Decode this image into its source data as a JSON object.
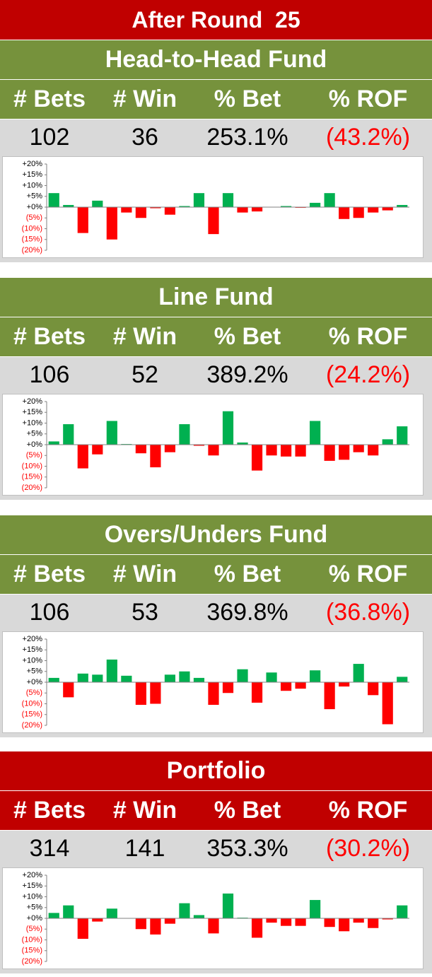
{
  "title": "After Round  25",
  "colors": {
    "positive": "#00b050",
    "negative": "#ff0000"
  },
  "sections": [
    {
      "title": "Head-to-Head Fund",
      "headers": [
        "# Bets",
        "# Win",
        "% Bet",
        "% ROF"
      ],
      "stats": [
        "102",
        "36",
        "253.1%",
        "(43.2%)"
      ],
      "chart": {
        "type": "bar",
        "ylim": [
          -20,
          20
        ],
        "yticks": [
          {
            "value": 20,
            "label": "+20%"
          },
          {
            "value": 15,
            "label": "+15%"
          },
          {
            "value": 10,
            "label": "+10%"
          },
          {
            "value": 5,
            "label": "+5%"
          },
          {
            "value": 0,
            "label": "+0%"
          },
          {
            "value": -5,
            "label": "(5%)"
          },
          {
            "value": -10,
            "label": "(10%)"
          },
          {
            "value": -15,
            "label": "(15%)"
          },
          {
            "value": -20,
            "label": "(20%)"
          }
        ],
        "values": [
          6.5,
          1,
          -12,
          3,
          -15,
          -2.5,
          -5,
          -0.5,
          -3.5,
          0.5,
          6.5,
          -12.5,
          6.5,
          -2.5,
          -2,
          0,
          0.5,
          -0.3,
          2,
          6.5,
          -5.5,
          -5,
          -2.5,
          -1.5,
          1
        ]
      }
    },
    {
      "title": "Line Fund",
      "headers": [
        "# Bets",
        "# Win",
        "% Bet",
        "% ROF"
      ],
      "stats": [
        "106",
        "52",
        "389.2%",
        "(24.2%)"
      ],
      "chart": {
        "type": "bar",
        "ylim": [
          -20,
          20
        ],
        "yticks": [
          {
            "value": 20,
            "label": "+20%"
          },
          {
            "value": 15,
            "label": "+15%"
          },
          {
            "value": 10,
            "label": "+10%"
          },
          {
            "value": 5,
            "label": "+5%"
          },
          {
            "value": 0,
            "label": "+0%"
          },
          {
            "value": -5,
            "label": "(5%)"
          },
          {
            "value": -10,
            "label": "(10%)"
          },
          {
            "value": -15,
            "label": "(15%)"
          },
          {
            "value": -20,
            "label": "(20%)"
          }
        ],
        "values": [
          1.5,
          9.5,
          -11,
          -4.5,
          11,
          0.3,
          -4,
          -10.5,
          -3.5,
          9.5,
          -0.5,
          -5,
          15.5,
          1,
          -12,
          -5,
          -5.5,
          -5.5,
          11,
          -7.5,
          -7,
          -3.5,
          -5,
          2.5,
          8.5
        ]
      }
    },
    {
      "title": "Overs/Unders Fund",
      "headers": [
        "# Bets",
        "# Win",
        "% Bet",
        "% ROF"
      ],
      "stats": [
        "106",
        "53",
        "369.8%",
        "(36.8%)"
      ],
      "chart": {
        "type": "bar",
        "ylim": [
          -20,
          20
        ],
        "yticks": [
          {
            "value": 20,
            "label": "+20%"
          },
          {
            "value": 15,
            "label": "+15%"
          },
          {
            "value": 10,
            "label": "+10%"
          },
          {
            "value": 5,
            "label": "+5%"
          },
          {
            "value": 0,
            "label": "+0%"
          },
          {
            "value": -5,
            "label": "(5%)"
          },
          {
            "value": -10,
            "label": "(10%)"
          },
          {
            "value": -15,
            "label": "(15%)"
          },
          {
            "value": -20,
            "label": "(20%)"
          }
        ],
        "values": [
          2,
          -7,
          4,
          3.5,
          10.5,
          3,
          -10.5,
          -10,
          3.5,
          5,
          2,
          -10.5,
          -5,
          6,
          -9.5,
          4.5,
          -4,
          -3,
          5.5,
          -12.5,
          -2,
          8.5,
          -6,
          -19.5,
          2.5
        ]
      }
    },
    {
      "title": "Portfolio",
      "headers": [
        "# Bets",
        "# Win",
        "% Bet",
        "% ROF"
      ],
      "stats": [
        "314",
        "141",
        "353.3%",
        "(30.2%)"
      ],
      "chart": {
        "type": "bar",
        "ylim": [
          -20,
          20
        ],
        "yticks": [
          {
            "value": 20,
            "label": "+20%"
          },
          {
            "value": 15,
            "label": "+15%"
          },
          {
            "value": 10,
            "label": "+10%"
          },
          {
            "value": 5,
            "label": "+5%"
          },
          {
            "value": 0,
            "label": "+0%"
          },
          {
            "value": -5,
            "label": "(5%)"
          },
          {
            "value": -10,
            "label": "(10%)"
          },
          {
            "value": -15,
            "label": "(15%)"
          },
          {
            "value": -20,
            "label": "(20%)"
          }
        ],
        "values": [
          2.5,
          6,
          -9.5,
          -1.5,
          4.5,
          0,
          -5,
          -7.5,
          -2.5,
          7,
          1.5,
          -7,
          11.5,
          0.3,
          -9,
          -2,
          -3.5,
          -3.5,
          8.5,
          -4,
          -6,
          -2,
          -4.5,
          -0.5,
          6
        ]
      }
    }
  ]
}
